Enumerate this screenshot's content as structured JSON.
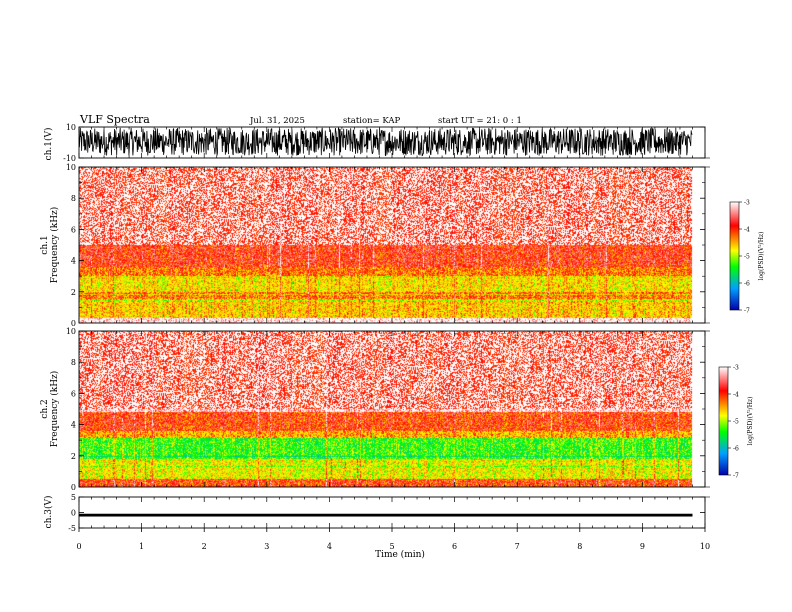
{
  "header": {
    "title": "VLF Spectra",
    "date": "Jul. 31, 2025",
    "station": "station= KAP",
    "start": "start UT =  21: 0 : 1"
  },
  "colors": {
    "colormap": [
      "#ffffff",
      "#ff0000",
      "#ffff00",
      "#00ff00",
      "#00a0ff",
      "#0000aa"
    ],
    "waveform": "#000000"
  },
  "chart_data": [
    {
      "type": "line",
      "name": "ch1-waveform",
      "ylabel": "ch.1(V)",
      "ylim": [
        -10,
        10
      ],
      "yticks": [
        "10",
        "-10"
      ],
      "xlim": [
        0,
        10
      ],
      "description_values": "dense oscillating broadband signal spanning approx -8 to 10 V"
    },
    {
      "type": "heatmap",
      "name": "ch1-spectrogram",
      "ylabel": "ch.1",
      "ylabel2": "Frequency (kHz)",
      "ylim": [
        0,
        10
      ],
      "yticks": [
        "0",
        "2",
        "4",
        "6",
        "8",
        "10"
      ],
      "xlim": [
        0,
        10
      ],
      "data_end_min": 9.8,
      "bands_khz": [
        {
          "from": 0.0,
          "to": 0.3,
          "level": -3.0
        },
        {
          "from": 0.3,
          "to": 1.5,
          "level": -4.3
        },
        {
          "from": 1.5,
          "to": 2.0,
          "level": -4.0
        },
        {
          "from": 2.0,
          "to": 3.0,
          "level": -4.4
        },
        {
          "from": 3.0,
          "to": 3.6,
          "level": -4.0
        },
        {
          "from": 3.6,
          "to": 5.0,
          "level": -3.7
        },
        {
          "from": 5.0,
          "to": 10.0,
          "level": -3.1
        }
      ],
      "colorbar": {
        "label": "log(PSD)(V²/Hz)",
        "range": [
          -7,
          -3
        ],
        "ticks": [
          "-3",
          "-4",
          "-5",
          "-6",
          "-7"
        ]
      }
    },
    {
      "type": "heatmap",
      "name": "ch2-spectrogram",
      "ylabel": "ch.2",
      "ylabel2": "Frequency (kHz)",
      "ylim": [
        0,
        10
      ],
      "yticks": [
        "0",
        "2",
        "4",
        "6",
        "8",
        "10"
      ],
      "xlim": [
        0,
        10
      ],
      "data_end_min": 9.8,
      "bands_khz": [
        {
          "from": 0.0,
          "to": 0.5,
          "level": -3.8
        },
        {
          "from": 0.5,
          "to": 1.8,
          "level": -4.5
        },
        {
          "from": 1.8,
          "to": 3.1,
          "level": -5.0
        },
        {
          "from": 3.1,
          "to": 3.6,
          "level": -4.2
        },
        {
          "from": 3.6,
          "to": 4.8,
          "level": -3.8
        },
        {
          "from": 4.8,
          "to": 10.0,
          "level": -3.1
        }
      ],
      "colorbar": {
        "label": "log(PSD)(V²/Hz)",
        "range": [
          -7,
          -3
        ],
        "ticks": [
          "-3",
          "-4",
          "-5",
          "-6",
          "-7"
        ]
      }
    },
    {
      "type": "line",
      "name": "ch3-waveform",
      "ylabel": "ch.3(V)",
      "ylim": [
        -5,
        5
      ],
      "yticks": [
        "5",
        "0",
        "-5"
      ],
      "xlim": [
        0,
        10
      ],
      "xlabel": "Time (min)",
      "xticks": [
        "0",
        "1",
        "2",
        "3",
        "4",
        "5",
        "6",
        "7",
        "8",
        "9",
        "10"
      ],
      "description_values": "narrow band near approx -0.8 V"
    }
  ]
}
